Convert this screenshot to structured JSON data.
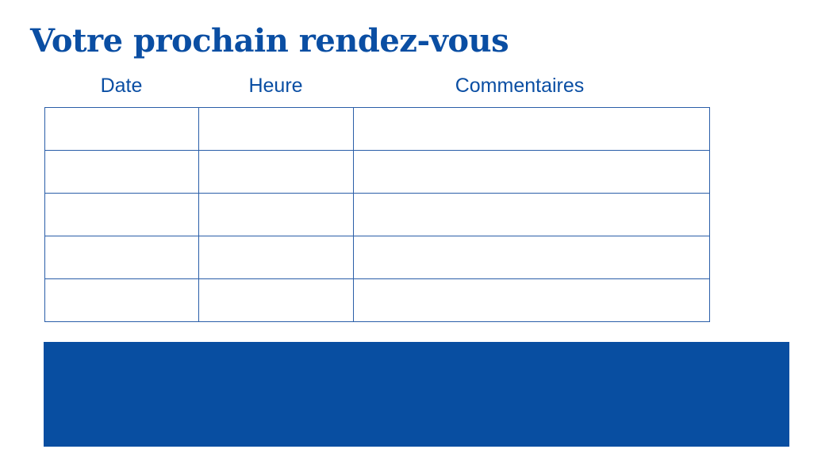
{
  "title": "Votre prochain rendez-vous",
  "table": {
    "headers": [
      "Date",
      "Heure",
      "Commentaires"
    ],
    "rows": [
      [
        "",
        "",
        ""
      ],
      [
        "",
        "",
        ""
      ],
      [
        "",
        "",
        ""
      ],
      [
        "",
        "",
        ""
      ],
      [
        "",
        "",
        ""
      ]
    ]
  },
  "colors": {
    "accent": "#0a4ea3",
    "band": "#084ea1"
  }
}
